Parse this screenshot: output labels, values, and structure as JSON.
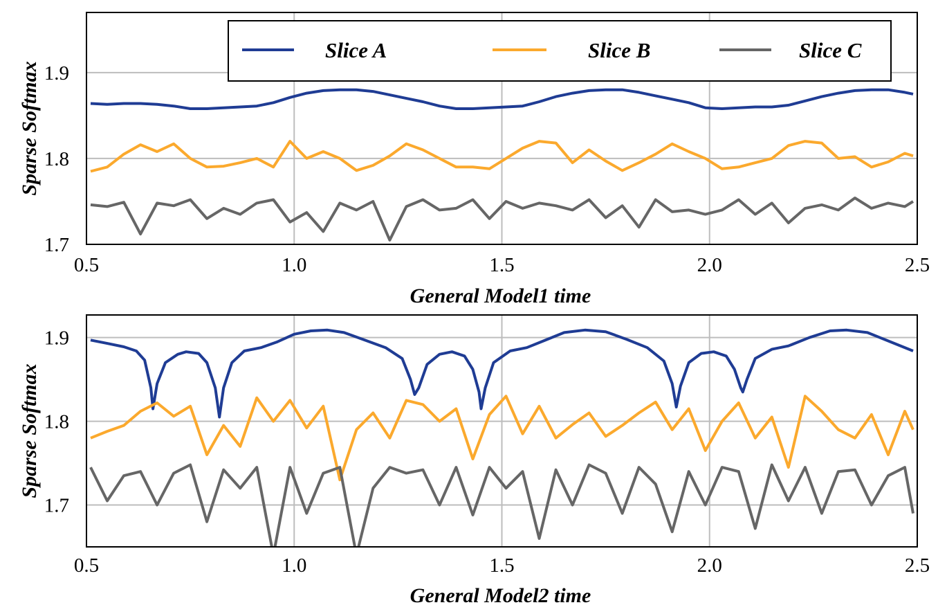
{
  "legend": {
    "placement": "top",
    "entries": [
      {
        "name": "Slice A",
        "color": "#1f3c94"
      },
      {
        "name": "Slice B",
        "color": "#fba92d"
      },
      {
        "name": "Slice C",
        "color": "#666666"
      }
    ]
  },
  "chart_data": [
    {
      "type": "line",
      "xlabel": "General Model1 time",
      "ylabel": "Sparse Softmax",
      "xlim": [
        0.5,
        2.5
      ],
      "ylim": [
        1.7,
        1.97
      ],
      "xticks": [
        "0.5",
        "1.0",
        "1.5",
        "2.0",
        "2.5"
      ],
      "yticks": [
        "1.7",
        "1.8",
        "1.9"
      ],
      "grid": true,
      "x": [
        0.51,
        0.55,
        0.59,
        0.63,
        0.67,
        0.71,
        0.75,
        0.79,
        0.83,
        0.87,
        0.91,
        0.95,
        0.99,
        1.03,
        1.07,
        1.11,
        1.15,
        1.19,
        1.23,
        1.27,
        1.31,
        1.35,
        1.39,
        1.43,
        1.47,
        1.51,
        1.55,
        1.59,
        1.63,
        1.67,
        1.71,
        1.75,
        1.79,
        1.83,
        1.87,
        1.91,
        1.95,
        1.99,
        2.03,
        2.07,
        2.11,
        2.15,
        2.19,
        2.23,
        2.27,
        2.31,
        2.35,
        2.39,
        2.43,
        2.47,
        2.49
      ],
      "series": [
        {
          "name": "Slice A",
          "values": [
            1.864,
            1.863,
            1.864,
            1.864,
            1.863,
            1.861,
            1.858,
            1.858,
            1.859,
            1.86,
            1.861,
            1.865,
            1.871,
            1.876,
            1.879,
            1.88,
            1.88,
            1.878,
            1.874,
            1.87,
            1.866,
            1.861,
            1.858,
            1.858,
            1.859,
            1.86,
            1.861,
            1.866,
            1.872,
            1.876,
            1.879,
            1.88,
            1.88,
            1.877,
            1.873,
            1.869,
            1.865,
            1.859,
            1.858,
            1.859,
            1.86,
            1.86,
            1.862,
            1.867,
            1.872,
            1.876,
            1.879,
            1.88,
            1.88,
            1.877,
            1.875
          ]
        },
        {
          "name": "Slice B",
          "values": [
            1.785,
            1.79,
            1.805,
            1.816,
            1.808,
            1.817,
            1.8,
            1.79,
            1.791,
            1.795,
            1.8,
            1.79,
            1.82,
            1.8,
            1.808,
            1.8,
            1.786,
            1.792,
            1.803,
            1.817,
            1.81,
            1.8,
            1.79,
            1.79,
            1.788,
            1.8,
            1.812,
            1.82,
            1.818,
            1.795,
            1.81,
            1.797,
            1.786,
            1.795,
            1.805,
            1.817,
            1.808,
            1.8,
            1.788,
            1.79,
            1.795,
            1.8,
            1.815,
            1.82,
            1.818,
            1.8,
            1.802,
            1.79,
            1.796,
            1.806,
            1.803
          ]
        },
        {
          "name": "Slice C",
          "values": [
            1.746,
            1.744,
            1.749,
            1.712,
            1.748,
            1.745,
            1.752,
            1.73,
            1.742,
            1.735,
            1.748,
            1.752,
            1.726,
            1.737,
            1.715,
            1.748,
            1.74,
            1.75,
            1.705,
            1.744,
            1.752,
            1.74,
            1.742,
            1.752,
            1.73,
            1.75,
            1.742,
            1.748,
            1.745,
            1.74,
            1.752,
            1.731,
            1.745,
            1.72,
            1.752,
            1.738,
            1.74,
            1.735,
            1.74,
            1.752,
            1.735,
            1.748,
            1.725,
            1.742,
            1.746,
            1.74,
            1.754,
            1.742,
            1.748,
            1.744,
            1.75
          ]
        }
      ]
    },
    {
      "type": "line",
      "xlabel": "General Model2 time",
      "ylabel": "Sparse Softmax",
      "xlim": [
        0.5,
        2.5
      ],
      "ylim": [
        1.65,
        1.927
      ],
      "xticks": [
        "0.5",
        "1.0",
        "1.5",
        "2.0",
        "2.5"
      ],
      "yticks": [
        "1.7",
        "1.8",
        "1.9"
      ],
      "grid": true,
      "x": [
        0.51,
        0.55,
        0.59,
        0.63,
        0.67,
        0.71,
        0.75,
        0.79,
        0.83,
        0.87,
        0.91,
        0.95,
        0.99,
        1.03,
        1.07,
        1.11,
        1.15,
        1.19,
        1.23,
        1.27,
        1.31,
        1.35,
        1.39,
        1.43,
        1.47,
        1.51,
        1.55,
        1.59,
        1.63,
        1.67,
        1.71,
        1.75,
        1.79,
        1.83,
        1.87,
        1.91,
        1.95,
        1.99,
        2.03,
        2.07,
        2.11,
        2.15,
        2.19,
        2.23,
        2.27,
        2.31,
        2.35,
        2.39,
        2.43,
        2.47,
        2.49
      ],
      "series": [
        {
          "name": "Slice A",
          "x": [
            0.51,
            0.55,
            0.59,
            0.62,
            0.64,
            0.655,
            0.66,
            0.67,
            0.69,
            0.72,
            0.74,
            0.77,
            0.79,
            0.81,
            0.82,
            0.83,
            0.85,
            0.88,
            0.92,
            0.96,
            1.0,
            1.04,
            1.08,
            1.12,
            1.17,
            1.22,
            1.26,
            1.28,
            1.29,
            1.3,
            1.32,
            1.35,
            1.38,
            1.41,
            1.43,
            1.445,
            1.45,
            1.46,
            1.48,
            1.52,
            1.56,
            1.6,
            1.65,
            1.7,
            1.75,
            1.8,
            1.85,
            1.89,
            1.91,
            1.92,
            1.93,
            1.95,
            1.98,
            2.01,
            2.04,
            2.06,
            2.075,
            2.08,
            2.09,
            2.11,
            2.15,
            2.19,
            2.24,
            2.29,
            2.33,
            2.38,
            2.43,
            2.49
          ],
          "values": [
            1.897,
            1.893,
            1.889,
            1.884,
            1.873,
            1.84,
            1.815,
            1.845,
            1.87,
            1.88,
            1.883,
            1.881,
            1.87,
            1.84,
            1.805,
            1.84,
            1.87,
            1.884,
            1.888,
            1.895,
            1.904,
            1.908,
            1.909,
            1.906,
            1.897,
            1.888,
            1.875,
            1.85,
            1.832,
            1.84,
            1.868,
            1.88,
            1.883,
            1.878,
            1.862,
            1.835,
            1.815,
            1.84,
            1.87,
            1.884,
            1.888,
            1.896,
            1.906,
            1.909,
            1.907,
            1.898,
            1.888,
            1.872,
            1.845,
            1.817,
            1.842,
            1.87,
            1.881,
            1.883,
            1.878,
            1.862,
            1.84,
            1.835,
            1.85,
            1.875,
            1.886,
            1.89,
            1.9,
            1.908,
            1.909,
            1.906,
            1.896,
            1.884
          ]
        },
        {
          "name": "Slice B",
          "values": [
            1.78,
            1.788,
            1.795,
            1.812,
            1.822,
            1.806,
            1.818,
            1.76,
            1.795,
            1.77,
            1.828,
            1.8,
            1.825,
            1.792,
            1.818,
            1.73,
            1.79,
            1.81,
            1.78,
            1.825,
            1.82,
            1.8,
            1.815,
            1.755,
            1.808,
            1.83,
            1.785,
            1.818,
            1.78,
            1.796,
            1.81,
            1.782,
            1.795,
            1.81,
            1.823,
            1.79,
            1.815,
            1.765,
            1.8,
            1.822,
            1.78,
            1.805,
            1.745,
            1.83,
            1.812,
            1.79,
            1.78,
            1.808,
            1.76,
            1.812,
            1.79
          ]
        },
        {
          "name": "Slice C",
          "values": [
            1.745,
            1.705,
            1.735,
            1.74,
            1.7,
            1.738,
            1.748,
            1.68,
            1.742,
            1.72,
            1.745,
            1.64,
            1.745,
            1.69,
            1.738,
            1.745,
            1.64,
            1.72,
            1.745,
            1.738,
            1.742,
            1.7,
            1.745,
            1.688,
            1.745,
            1.72,
            1.74,
            1.66,
            1.742,
            1.7,
            1.748,
            1.738,
            1.69,
            1.745,
            1.725,
            1.668,
            1.74,
            1.7,
            1.745,
            1.74,
            1.672,
            1.748,
            1.705,
            1.745,
            1.69,
            1.74,
            1.742,
            1.7,
            1.735,
            1.745,
            1.69
          ]
        }
      ]
    }
  ]
}
